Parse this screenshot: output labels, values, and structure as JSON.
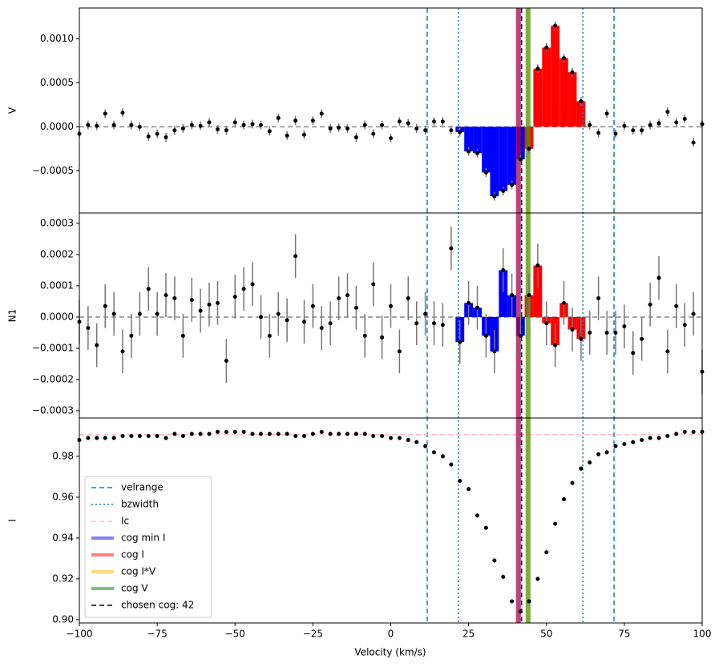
{
  "chart_data": {
    "type": "stacked-errorbar",
    "xlabel": "Velocity (km/s)",
    "xlim": [
      -100,
      100
    ],
    "xticks": [
      {
        "value": -100,
        "label": "−100"
      },
      {
        "value": -75,
        "label": "−75"
      },
      {
        "value": -50,
        "label": "−50"
      },
      {
        "value": -25,
        "label": "−25"
      },
      0,
      25,
      50,
      75,
      100
    ],
    "x": [
      -100,
      -97.2,
      -94.4,
      -91.7,
      -88.9,
      -86.1,
      -83.3,
      -80.6,
      -77.8,
      -75,
      -72.2,
      -69.4,
      -66.7,
      -63.9,
      -61.1,
      -58.3,
      -55.6,
      -52.8,
      -50,
      -47.2,
      -44.4,
      -41.7,
      -38.9,
      -36.1,
      -33.3,
      -30.6,
      -27.8,
      -25,
      -22.2,
      -19.4,
      -16.7,
      -13.9,
      -11.1,
      -8.3,
      -5.6,
      -2.8,
      0,
      2.8,
      5.6,
      8.3,
      11.1,
      13.9,
      16.7,
      19.4,
      22.2,
      25,
      27.8,
      30.6,
      33.3,
      36.1,
      38.9,
      41.7,
      44.4,
      47.2,
      50,
      52.8,
      55.6,
      58.3,
      61.1,
      63.9,
      66.7,
      69.4,
      72.2,
      75,
      77.8,
      80.6,
      83.3,
      86.1,
      88.9,
      91.7,
      94.4,
      97.2,
      100
    ],
    "point_color": "#000000",
    "error_color": "#777777",
    "bar_colors": [
      "#0000ff",
      "#ff0000"
    ],
    "panels": [
      {
        "ylabel": "V",
        "ylim": [
          -0.00098,
          0.00135
        ],
        "hline": 0,
        "bars": true,
        "error": 5e-05,
        "yticks": [
          {
            "value": -0.0005,
            "label": "−0.0005"
          },
          {
            "value": 0,
            "label": "0.0000"
          },
          {
            "value": 0.0005,
            "label": "0.0005"
          },
          {
            "value": 0.001,
            "label": "0.0010"
          }
        ],
        "values": [
          -8e-05,
          2e-05,
          1e-05,
          0.00015,
          2e-05,
          0.00016,
          2e-05,
          0,
          -0.00011,
          -8e-05,
          -0.00012,
          -4e-05,
          -2e-05,
          2e-05,
          1e-05,
          5e-05,
          -3e-05,
          -4e-05,
          5e-05,
          2e-05,
          3e-05,
          2e-05,
          -5e-05,
          0.0001,
          -0.0001,
          7e-05,
          -9e-05,
          7e-05,
          0.00015,
          -2e-05,
          -1e-05,
          -2e-05,
          -0.00012,
          2e-05,
          -8e-05,
          2e-05,
          -0.00013,
          6e-05,
          4e-05,
          -2e-05,
          -4e-05,
          6e-05,
          6e-05,
          -4e-05,
          -6e-05,
          -0.00028,
          -0.0003,
          -0.00052,
          -0.00079,
          -0.00073,
          -0.00066,
          -0.00037,
          -0.00025,
          0.00066,
          0.0009,
          0.00115,
          0.00078,
          0.00062,
          0.00029,
          2e-05,
          -7e-05,
          0.00015,
          -8e-05,
          1e-05,
          -4e-05,
          -4e-05,
          2e-05,
          4e-05,
          0.00017,
          5e-05,
          9e-05,
          -0.00018,
          3e-05
        ]
      },
      {
        "ylabel": "N1",
        "ylim": [
          -0.000323,
          0.000333
        ],
        "hline": 0,
        "bars": true,
        "error": 7e-05,
        "yticks": [
          {
            "value": -0.0003,
            "label": "−0.0003"
          },
          {
            "value": -0.0002,
            "label": "−0.0002"
          },
          {
            "value": -0.0001,
            "label": "−0.0001"
          },
          {
            "value": 0,
            "label": "0.0000"
          },
          {
            "value": 0.0001,
            "label": "0.0001"
          },
          {
            "value": 0.0002,
            "label": "0.0002"
          },
          {
            "value": 0.0003,
            "label": "0.0003"
          }
        ],
        "values": [
          -1.5e-05,
          -3.5e-05,
          -9e-05,
          3.5e-05,
          1e-05,
          -0.00011,
          -6e-05,
          1e-05,
          9e-05,
          1e-05,
          7e-05,
          6e-05,
          -6e-05,
          5.5e-05,
          2e-05,
          4e-05,
          4.5e-05,
          -0.00014,
          6.5e-05,
          9e-05,
          0.000105,
          0,
          -6e-05,
          1e-05,
          -1e-05,
          0.000195,
          -1.5e-05,
          3.5e-05,
          -3.5e-05,
          -2e-05,
          6e-05,
          7e-05,
          3e-05,
          -6e-05,
          0.000105,
          -6.5e-05,
          3.5e-05,
          -0.00011,
          6e-05,
          -2e-05,
          1e-05,
          -2e-05,
          -2.5e-05,
          0.00022,
          -8e-05,
          4.5e-05,
          3e-05,
          -6e-05,
          -0.00011,
          0.00015,
          7e-05,
          -6e-05,
          7e-05,
          0.000165,
          -2e-05,
          -9e-05,
          4.5e-05,
          -4e-05,
          -7e-05,
          -5e-05,
          6e-05,
          -5e-05,
          -5e-05,
          -3e-05,
          -0.000115,
          -7e-05,
          4e-05,
          0.000125,
          -0.00011,
          3.5e-05,
          -2.5e-05,
          1e-05,
          -0.000175
        ]
      },
      {
        "ylabel": "I",
        "ylim": [
          0.8984,
          0.9988
        ],
        "bars": false,
        "error": 0.001,
        "yticks": [
          {
            "value": 0.9,
            "label": "0.90"
          },
          {
            "value": 0.92,
            "label": "0.92"
          },
          {
            "value": 0.94,
            "label": "0.94"
          },
          {
            "value": 0.96,
            "label": "0.96"
          },
          {
            "value": 0.98,
            "label": "0.98"
          }
        ],
        "values": [
          0.988,
          0.989,
          0.989,
          0.989,
          0.989,
          0.99,
          0.99,
          0.99,
          0.99,
          0.99,
          0.989,
          0.991,
          0.99,
          0.991,
          0.991,
          0.991,
          0.992,
          0.992,
          0.992,
          0.992,
          0.991,
          0.991,
          0.991,
          0.991,
          0.991,
          0.99,
          0.99,
          0.991,
          0.992,
          0.991,
          0.991,
          0.991,
          0.991,
          0.991,
          0.99,
          0.99,
          0.989,
          0.989,
          0.988,
          0.987,
          0.985,
          0.982,
          0.98,
          0.976,
          0.968,
          0.964,
          0.951,
          0.945,
          0.929,
          0.921,
          0.909,
          0.904,
          0.909,
          0.92,
          0.933,
          0.947,
          0.959,
          0.967,
          0.974,
          0.977,
          0.981,
          0.982,
          0.985,
          0.986,
          0.987,
          0.988,
          0.989,
          0.989,
          0.99,
          0.991,
          0.992,
          0.992,
          0.992
        ]
      }
    ],
    "legend": "lower left",
    "lines": [
      {
        "name": "velrange",
        "color": "#1f77b4",
        "style": "dashed",
        "values": [
          11.7,
          71.7
        ]
      },
      {
        "name": "bzwidth",
        "color": "#1f77b4",
        "style": "dotted",
        "values": [
          21.7,
          61.7
        ]
      },
      {
        "name": "Ic",
        "color": "#ffb6c1",
        "style": "dashed",
        "orient": "h",
        "panel": 2,
        "values": [
          0.9906
        ]
      },
      {
        "name": "cog min I",
        "color": "#0000ff",
        "style": "band",
        "values": [
          41
        ]
      },
      {
        "name": "cog I",
        "color": "#ff0000",
        "style": "band",
        "values": [
          41
        ]
      },
      {
        "name": "cog I*V",
        "color": "#ffb000",
        "style": "band",
        "values": [
          44.1
        ]
      },
      {
        "name": "cog V",
        "color": "#008000",
        "style": "band",
        "values": [
          44.1
        ]
      },
      {
        "name": "chosen cog: 42",
        "color": "#000000",
        "style": "dashed",
        "values": [
          42
        ]
      }
    ]
  }
}
